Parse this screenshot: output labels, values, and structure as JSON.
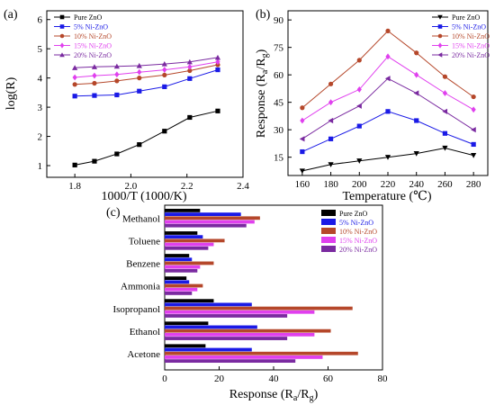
{
  "colors": {
    "pure": "#000000",
    "ni5": "#1a1ae6",
    "ni10": "#b5472a",
    "ni15": "#e040ee",
    "ni20": "#7a2aa0"
  },
  "chart_data": [
    {
      "panel": "(a)",
      "type": "line",
      "xlabel": "1000/T (1000/K)",
      "ylabel": "log(R)",
      "xlim": [
        1.7,
        2.4
      ],
      "ylim": [
        0.6,
        6.3
      ],
      "xticks": [
        "1.8",
        "2.0",
        "2.2",
        "2.4"
      ],
      "yticks": [
        "1",
        "2",
        "3",
        "4",
        "5",
        "6"
      ],
      "x": [
        1.8,
        1.87,
        1.95,
        2.03,
        2.12,
        2.21,
        2.31
      ],
      "legend_position": "top-left",
      "series": [
        {
          "name": "Pure ZnO",
          "key": "pure",
          "marker": "square",
          "values": [
            1.02,
            1.15,
            1.4,
            1.72,
            2.18,
            2.65,
            2.87
          ]
        },
        {
          "name": "5%   Ni-ZnO",
          "key": "ni5",
          "marker": "square",
          "values": [
            3.38,
            3.4,
            3.42,
            3.55,
            3.7,
            3.98,
            4.28
          ]
        },
        {
          "name": "10% Ni-ZnO",
          "key": "ni10",
          "marker": "circle",
          "values": [
            3.78,
            3.82,
            3.9,
            4.0,
            4.1,
            4.25,
            4.45
          ]
        },
        {
          "name": "15% Ni-ZnO",
          "key": "ni15",
          "marker": "diamond",
          "values": [
            4.02,
            4.08,
            4.12,
            4.2,
            4.28,
            4.38,
            4.55
          ]
        },
        {
          "name": "20% Ni-ZnO",
          "key": "ni20",
          "marker": "triangle",
          "values": [
            4.35,
            4.38,
            4.4,
            4.42,
            4.48,
            4.55,
            4.7
          ]
        }
      ]
    },
    {
      "panel": "(b)",
      "type": "line",
      "xlabel": "Temperature (℃)",
      "ylabel_main": "Response (R",
      "ylabel_sub1": "a",
      "ylabel_mid": "/R",
      "ylabel_sub2": "g",
      "ylabel_end": ")",
      "xlim": [
        150,
        290
      ],
      "ylim": [
        5,
        95
      ],
      "xticks": [
        "160",
        "180",
        "200",
        "220",
        "240",
        "260",
        "280"
      ],
      "yticks": [
        "15",
        "30",
        "45",
        "60",
        "75",
        "90"
      ],
      "x": [
        160,
        180,
        200,
        220,
        240,
        260,
        280
      ],
      "legend_position": "top-right",
      "series": [
        {
          "name": "Pure ZnO",
          "key": "pure",
          "marker": "triangle-down",
          "values": [
            7.5,
            11,
            13,
            15,
            17,
            20,
            16
          ]
        },
        {
          "name": "5%   Ni-ZnO",
          "key": "ni5",
          "marker": "square",
          "values": [
            18,
            25,
            32,
            40,
            35,
            28,
            22
          ]
        },
        {
          "name": "10% Ni-ZnO",
          "key": "ni10",
          "marker": "circle",
          "values": [
            42,
            55,
            68,
            84,
            72,
            59,
            48
          ]
        },
        {
          "name": "15% Ni-ZnO",
          "key": "ni15",
          "marker": "diamond",
          "values": [
            35,
            45,
            52,
            70,
            60,
            50,
            41
          ]
        },
        {
          "name": "20% Ni-ZnO",
          "key": "ni20",
          "marker": "triangle-left",
          "values": [
            25,
            35,
            43,
            58,
            50,
            40,
            30
          ]
        }
      ]
    },
    {
      "panel": "(c)",
      "type": "bar",
      "orientation": "horizontal",
      "xlabel_main": "Response (R",
      "xlabel_sub1": "a",
      "xlabel_mid": "/R",
      "xlabel_sub2": "g",
      "xlabel_end": ")",
      "xlim": [
        0,
        80
      ],
      "xticks": [
        "0",
        "20",
        "40",
        "60",
        "80"
      ],
      "categories": [
        "Methanol",
        "Toluene",
        "Benzene",
        "Ammonia",
        "Isopropanol",
        "Ethanol",
        "Acetone"
      ],
      "legend_position": "top-right",
      "series": [
        {
          "name": "Pure ZnO",
          "key": "pure",
          "values": [
            13,
            12,
            9,
            8,
            18,
            16,
            15
          ]
        },
        {
          "name": "5%   Ni-ZnO",
          "key": "ni5",
          "values": [
            28,
            14,
            10,
            9,
            32,
            34,
            32
          ]
        },
        {
          "name": "10% Ni-ZnO",
          "key": "ni10",
          "values": [
            35,
            22,
            18,
            14,
            69,
            61,
            71
          ]
        },
        {
          "name": "15% Ni-ZnO",
          "key": "ni15",
          "values": [
            33,
            18,
            13,
            12,
            55,
            55,
            58
          ]
        },
        {
          "name": "20% Ni-ZnO",
          "key": "ni20",
          "values": [
            30,
            16,
            12,
            10,
            45,
            45,
            48
          ]
        }
      ]
    }
  ]
}
